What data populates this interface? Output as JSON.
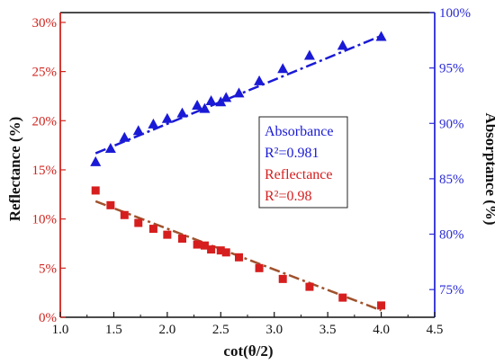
{
  "chart_data": {
    "type": "scatter",
    "xlabel": "cot(θ/2)",
    "ylabel_left": "Reflectance (%)",
    "ylabel_right": "Absorptance (%)",
    "xlim": [
      1.0,
      4.5
    ],
    "xticks": [
      "1.0",
      "1.5",
      "2.0",
      "2.5",
      "3.0",
      "3.5",
      "4.0",
      "4.5"
    ],
    "ylim_left": [
      0,
      31
    ],
    "yticks_left": [
      "0%",
      "5%",
      "10%",
      "15%",
      "20%",
      "25%",
      "30%"
    ],
    "ylim_right": [
      72.5,
      100
    ],
    "yticks_right": [
      "75%",
      "80%",
      "85%",
      "90%",
      "95%",
      "100%"
    ],
    "grid": false,
    "series": [
      {
        "name": "Absorbance",
        "axis": "right",
        "marker": "triangle",
        "color": "#1a1ad6",
        "fit_color": "#1a1ad6",
        "x": [
          1.33,
          1.47,
          1.6,
          1.73,
          1.87,
          2.0,
          2.14,
          2.28,
          2.35,
          2.41,
          2.5,
          2.55,
          2.67,
          2.86,
          3.08,
          3.33,
          3.64,
          4.0
        ],
        "y": [
          86.5,
          87.7,
          88.7,
          89.3,
          89.9,
          90.4,
          90.9,
          91.6,
          91.3,
          92.0,
          91.9,
          92.3,
          92.7,
          93.8,
          94.9,
          96.1,
          97.0,
          97.8
        ],
        "fit": [
          [
            1.33,
            87.3
          ],
          [
            4.0,
            97.9
          ]
        ],
        "r2_label": "R²=0.981"
      },
      {
        "name": "Reflectance",
        "axis": "left",
        "marker": "square",
        "color": "#d61e1e",
        "fit_color": "#a0522d",
        "x": [
          1.33,
          1.47,
          1.6,
          1.73,
          1.87,
          2.0,
          2.14,
          2.28,
          2.35,
          2.41,
          2.5,
          2.55,
          2.67,
          2.86,
          3.08,
          3.33,
          3.64,
          4.0
        ],
        "y": [
          12.9,
          11.4,
          10.4,
          9.6,
          9.0,
          8.4,
          8.0,
          7.4,
          7.3,
          6.9,
          6.8,
          6.6,
          6.1,
          5.0,
          3.9,
          3.1,
          2.0,
          1.2
        ],
        "fit": [
          [
            1.33,
            11.8
          ],
          [
            4.0,
            0.7
          ]
        ],
        "r2_label": "R²=0.98"
      }
    ],
    "legend_position": "center-right"
  }
}
